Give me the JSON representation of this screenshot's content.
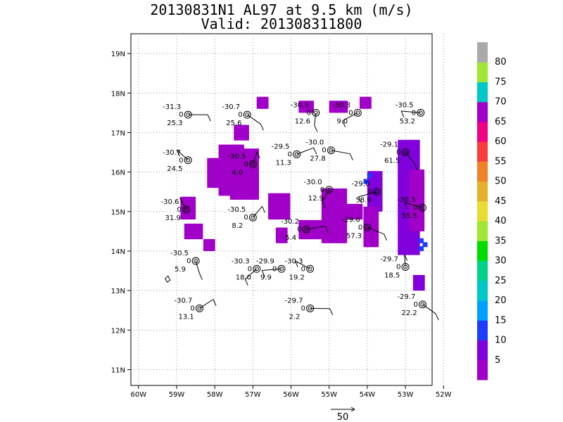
{
  "chart_data": {
    "type": "scatter",
    "title": "20130831N1 AL97 at 9.5 km (m/s)",
    "subtitle": "Valid: 201308311800",
    "x_ticks": [
      "60W",
      "59W",
      "58W",
      "57W",
      "56W",
      "55W",
      "54W",
      "53W",
      "52W"
    ],
    "x_tick_values": [
      -60,
      -59,
      -58,
      -57,
      -56,
      -55,
      -54,
      -53,
      -52
    ],
    "y_ticks": [
      "11N",
      "12N",
      "13N",
      "14N",
      "15N",
      "16N",
      "17N",
      "18N",
      "19N"
    ],
    "y_tick_values": [
      11,
      12,
      13,
      14,
      15,
      16,
      17,
      18,
      19
    ],
    "xlim": [
      -60.2,
      -52.3
    ],
    "ylim": [
      10.6,
      19.5
    ],
    "grid": true,
    "colorbar": {
      "labels": [
        "5",
        "10",
        "15",
        "20",
        "25",
        "30",
        "35",
        "40",
        "45",
        "50",
        "55",
        "60",
        "65",
        "70",
        "75",
        "80"
      ],
      "colors": [
        "#a000c8",
        "#8200dc",
        "#1e3cff",
        "#00a0ff",
        "#00c8c8",
        "#00d28c",
        "#00dc00",
        "#a0e632",
        "#e6dc32",
        "#e6af2d",
        "#f08228",
        "#fa3c3c",
        "#f00082",
        "#a000c8",
        "#00c8c8",
        "#a0e632",
        "#aaaaaa"
      ]
    },
    "reference_vector": {
      "label": "50"
    },
    "stations": [
      {
        "lon": -58.7,
        "lat": 17.45,
        "t": "-31.3",
        "z": "0",
        "w": "25.3"
      },
      {
        "lon": -57.15,
        "lat": 17.45,
        "t": "-30.7",
        "z": "0",
        "w": "25.6"
      },
      {
        "lon": -55.35,
        "lat": 17.5,
        "t": "-30.3",
        "z": "0",
        "w": "12.6"
      },
      {
        "lon": -54.25,
        "lat": 17.5,
        "t": "-30.3",
        "z": "0",
        "w": "9.0"
      },
      {
        "lon": -52.6,
        "lat": 17.5,
        "t": "-30.5",
        "z": "0",
        "w": "53.2"
      },
      {
        "lon": -58.7,
        "lat": 16.3,
        "t": "-30.7",
        "z": "0",
        "w": "24.5"
      },
      {
        "lon": -57.0,
        "lat": 16.2,
        "t": "-30.5",
        "z": "0",
        "w": "4.0"
      },
      {
        "lon": -55.85,
        "lat": 16.45,
        "t": "-29.5",
        "z": "0",
        "w": "11.3"
      },
      {
        "lon": -54.95,
        "lat": 16.55,
        "t": "-30.0",
        "z": "0",
        "w": "27.8"
      },
      {
        "lon": -53.0,
        "lat": 16.5,
        "t": "-29.1",
        "z": "0",
        "w": "61.5"
      },
      {
        "lon": -55.0,
        "lat": 15.55,
        "t": "-30.0",
        "z": "0",
        "w": "12.9"
      },
      {
        "lon": -53.75,
        "lat": 15.5,
        "t": "-29.0",
        "z": "0",
        "w": "58.9"
      },
      {
        "lon": -52.55,
        "lat": 15.1,
        "t": "-30.3",
        "z": "0",
        "w": "55.5"
      },
      {
        "lon": -58.75,
        "lat": 15.05,
        "t": "-30.6",
        "z": "0",
        "w": "31.9"
      },
      {
        "lon": -57.0,
        "lat": 14.85,
        "t": "-30.5",
        "z": "0",
        "w": "8.2"
      },
      {
        "lon": -55.6,
        "lat": 14.55,
        "t": "-30.2",
        "z": "0",
        "w": "5.4"
      },
      {
        "lon": -54.0,
        "lat": 14.6,
        "t": "-29.6",
        "z": "0",
        "w": "57.3"
      },
      {
        "lon": -58.5,
        "lat": 13.75,
        "t": "-30.5",
        "z": "0",
        "w": "5.9"
      },
      {
        "lon": -56.9,
        "lat": 13.55,
        "t": "-30.3",
        "z": "0",
        "w": "18.0"
      },
      {
        "lon": -56.25,
        "lat": 13.55,
        "t": "-29.9",
        "z": "0",
        "w": "9.9"
      },
      {
        "lon": -55.5,
        "lat": 13.55,
        "t": "-30.3",
        "z": "0",
        "w": "19.2"
      },
      {
        "lon": -53.0,
        "lat": 13.6,
        "t": "-29.7",
        "z": "0",
        "w": "18.5"
      },
      {
        "lon": -58.4,
        "lat": 12.55,
        "t": "-30.7",
        "z": "0",
        "w": "13.1"
      },
      {
        "lon": -55.5,
        "lat": 12.55,
        "t": "-29.7",
        "z": "0",
        "w": "2.2"
      },
      {
        "lon": -52.55,
        "lat": 12.65,
        "t": "-29.7",
        "z": "0",
        "w": "22.2"
      }
    ]
  }
}
